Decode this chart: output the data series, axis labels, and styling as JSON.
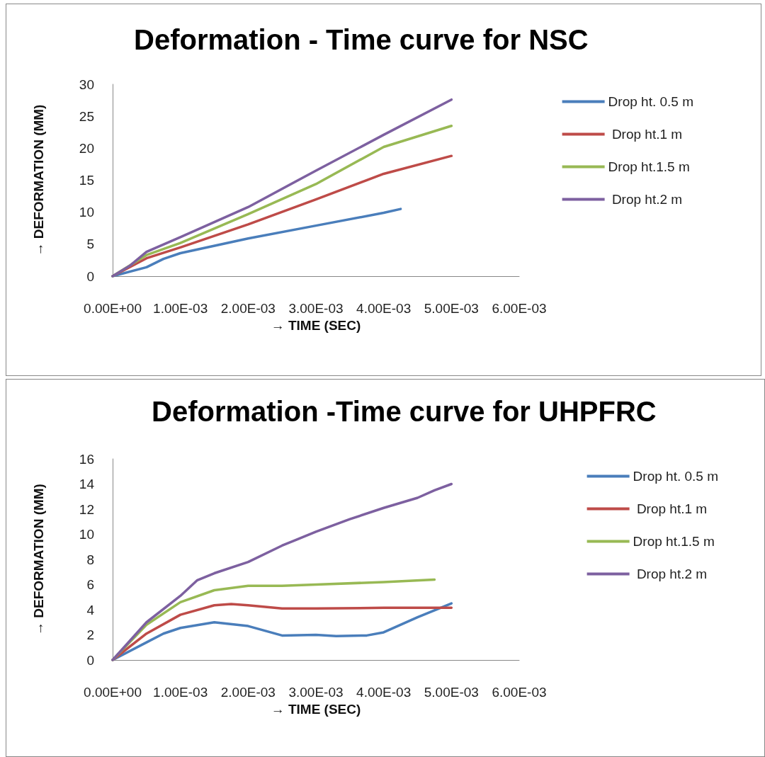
{
  "chart_data": [
    {
      "type": "line",
      "title": "Deformation - Time curve for NSC",
      "xlabel": "→ TIME (SEC)",
      "ylabel": "→ DEFORMATION (MM)",
      "xlim": [
        0,
        0.006
      ],
      "ylim": [
        0,
        30
      ],
      "xticks": [
        {
          "value": 0,
          "label": "0.00E+00"
        },
        {
          "value": 0.001,
          "label": "1.00E-03"
        },
        {
          "value": 0.002,
          "label": "2.00E-03"
        },
        {
          "value": 0.003,
          "label": "3.00E-03"
        },
        {
          "value": 0.004,
          "label": "4.00E-03"
        },
        {
          "value": 0.005,
          "label": "5.00E-03"
        },
        {
          "value": 0.006,
          "label": "6.00E-03"
        }
      ],
      "yticks": [
        0,
        5,
        10,
        15,
        20,
        25,
        30
      ],
      "grid": false,
      "legend": "right",
      "marker": "none",
      "line_style": "solid",
      "series": [
        {
          "name": "Drop ht. 0.5 m",
          "color": "#4a7ebb",
          "x": [
            0,
            0.0005,
            0.00075,
            0.001,
            0.002,
            0.003,
            0.004,
            0.00425
          ],
          "values": [
            0,
            1.4,
            2.7,
            3.6,
            5.9,
            7.9,
            9.9,
            10.5
          ]
        },
        {
          "name": " Drop ht.1 m",
          "color": "#be4b48",
          "x": [
            0,
            0.0005,
            0.001,
            0.002,
            0.003,
            0.004,
            0.005
          ],
          "values": [
            0,
            2.8,
            4.5,
            8.1,
            12,
            16,
            18.8
          ]
        },
        {
          "name": "Drop ht.1.5 m",
          "color": "#98b954",
          "x": [
            0,
            0.0005,
            0.001,
            0.002,
            0.003,
            0.004,
            0.005
          ],
          "values": [
            0,
            3.3,
            5.2,
            9.7,
            14.4,
            20.2,
            23.5
          ]
        },
        {
          "name": " Drop ht.2 m",
          "color": "#7d60a0",
          "x": [
            0,
            0.00025,
            0.0005,
            0.001,
            0.002,
            0.003,
            0.004,
            0.005
          ],
          "values": [
            0,
            1.6,
            3.8,
            6.1,
            10.8,
            16.5,
            22.1,
            27.6
          ]
        }
      ]
    },
    {
      "type": "line",
      "title": "Deformation -Time curve for UHPFRC",
      "xlabel": "→ TIME (SEC)",
      "ylabel": "→ DEFORMATION (MM)",
      "xlim": [
        0,
        0.006
      ],
      "ylim": [
        0,
        16
      ],
      "xticks": [
        {
          "value": 0,
          "label": "0.00E+00"
        },
        {
          "value": 0.001,
          "label": "1.00E-03"
        },
        {
          "value": 0.002,
          "label": "2.00E-03"
        },
        {
          "value": 0.003,
          "label": "3.00E-03"
        },
        {
          "value": 0.004,
          "label": "4.00E-03"
        },
        {
          "value": 0.005,
          "label": "5.00E-03"
        },
        {
          "value": 0.006,
          "label": "6.00E-03"
        }
      ],
      "yticks": [
        0,
        2,
        4,
        6,
        8,
        10,
        12,
        14,
        16
      ],
      "grid": false,
      "legend": "right",
      "marker": "none",
      "line_style": "solid",
      "series": [
        {
          "name": "Drop ht. 0.5 m",
          "color": "#4a7ebb",
          "x": [
            0,
            0.0005,
            0.00075,
            0.001,
            0.0015,
            0.002,
            0.0025,
            0.003,
            0.0033,
            0.00375,
            0.004,
            0.0045,
            0.005
          ],
          "values": [
            0,
            1.4,
            2.1,
            2.55,
            3.0,
            2.7,
            1.95,
            2.0,
            1.9,
            1.95,
            2.2,
            3.4,
            4.5
          ]
        },
        {
          "name": " Drop ht.1 m",
          "color": "#be4b48",
          "x": [
            0,
            0.0005,
            0.001,
            0.0015,
            0.00175,
            0.002,
            0.0025,
            0.003,
            0.004,
            0.005
          ],
          "values": [
            0,
            2.1,
            3.6,
            4.35,
            4.45,
            4.35,
            4.1,
            4.1,
            4.15,
            4.15
          ]
        },
        {
          "name": "Drop ht.1.5 m",
          "color": "#98b954",
          "x": [
            0,
            0.0005,
            0.001,
            0.0015,
            0.002,
            0.0025,
            0.003,
            0.004,
            0.00475
          ],
          "values": [
            0,
            2.8,
            4.6,
            5.55,
            5.9,
            5.9,
            6.0,
            6.2,
            6.4
          ]
        },
        {
          "name": " Drop ht.2 m",
          "color": "#7d60a0",
          "x": [
            0,
            0.0005,
            0.001,
            0.00125,
            0.0015,
            0.002,
            0.0025,
            0.003,
            0.0035,
            0.004,
            0.0045,
            0.00475,
            0.005
          ],
          "values": [
            0,
            3.0,
            5.1,
            6.35,
            6.9,
            7.8,
            9.1,
            10.2,
            11.2,
            12.1,
            12.9,
            13.5,
            14.0
          ]
        }
      ]
    }
  ]
}
